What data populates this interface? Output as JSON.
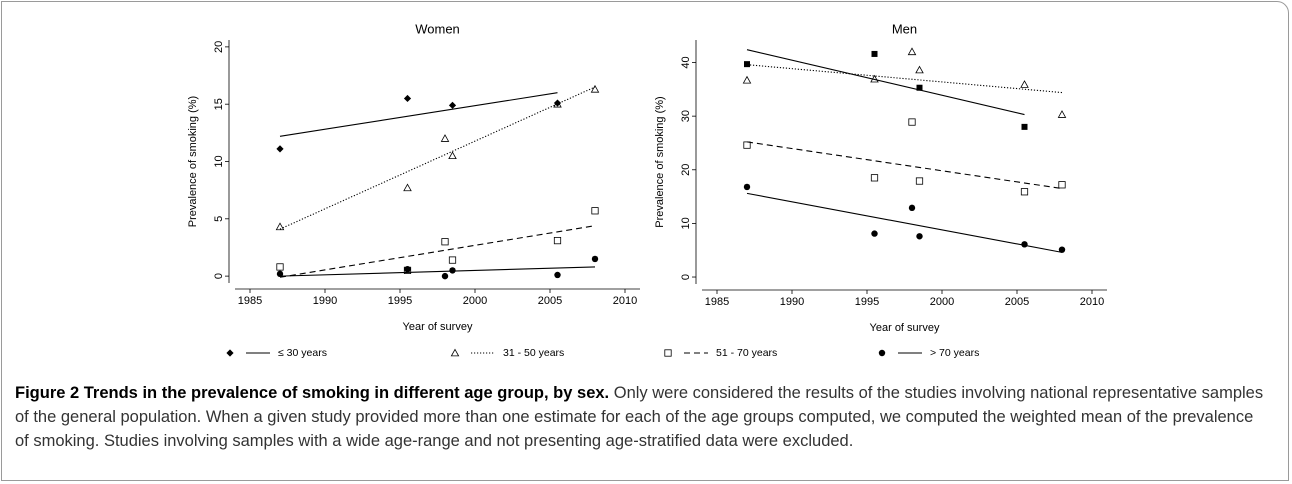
{
  "chart_data": [
    {
      "type": "scatter",
      "title": "Women",
      "x_label": "Year of survey",
      "y_label": "Prevalence of smoking (%)",
      "xlim": [
        1984,
        2011
      ],
      "xticks": [
        1985,
        1990,
        1995,
        2000,
        2005,
        2010
      ],
      "ylim": [
        -0.6,
        20.6
      ],
      "yticks": [
        0,
        5,
        10,
        15,
        20
      ],
      "series": [
        {
          "name": "≤ 30 years",
          "color": "#000000",
          "marker": "diamond",
          "dash": "solid",
          "x": [
            1987,
            1995.5,
            1998.5,
            2005.5
          ],
          "values": [
            11.1,
            15.5,
            14.9,
            15.1
          ],
          "trend": {
            "x": [
              1987,
              2005.5
            ],
            "values": [
              12.2,
              16.0
            ]
          }
        },
        {
          "name": "31 - 50 years",
          "color": "#000000",
          "marker": "triangle",
          "dash": "dotted",
          "x": [
            1987,
            1995.5,
            1998,
            1998.5,
            2005.5,
            2008
          ],
          "values": [
            4.3,
            7.7,
            12.0,
            10.5,
            15.0,
            16.3
          ],
          "trend": {
            "x": [
              1987,
              2008
            ],
            "values": [
              4.1,
              16.5
            ]
          }
        },
        {
          "name": "51 - 70 years",
          "color": "#000000",
          "marker": "square",
          "dash": "dashed",
          "x": [
            1987,
            1995.5,
            1998,
            1998.5,
            2005.5,
            2008
          ],
          "values": [
            0.8,
            0.5,
            3.0,
            1.4,
            3.1,
            5.7
          ],
          "trend": {
            "x": [
              1987,
              2008
            ],
            "values": [
              -0.1,
              4.4
            ]
          }
        },
        {
          "name": "> 70 years",
          "color": "#000000",
          "marker": "circle",
          "dash": "solid",
          "x": [
            1987,
            1995.5,
            1998,
            1998.5,
            2005.5,
            2008
          ],
          "values": [
            0.2,
            0.6,
            0.0,
            0.5,
            0.1,
            1.5
          ],
          "trend": {
            "x": [
              1987,
              2008
            ],
            "values": [
              0.0,
              0.8
            ]
          }
        }
      ]
    },
    {
      "type": "scatter",
      "title": "Men",
      "x_label": "Year of survey",
      "y_label": "Prevalence of smoking (%)",
      "xlim": [
        1984,
        2011
      ],
      "xticks": [
        1985,
        1990,
        1995,
        2000,
        2005,
        2010
      ],
      "ylim": [
        -1.3,
        44.2
      ],
      "yticks": [
        0,
        10,
        20,
        30,
        40
      ],
      "series": [
        {
          "color": "#000000",
          "marker": "filled-square",
          "dash": "solid",
          "x": [
            1987,
            1995.5,
            1998.5,
            2005.5
          ],
          "values": [
            39.7,
            41.6,
            35.3,
            28.0
          ],
          "trend": {
            "x": [
              1987,
              2005.5
            ],
            "values": [
              42.4,
              30.3
            ]
          }
        },
        {
          "color": "#000000",
          "marker": "triangle",
          "dash": "dotted",
          "x": [
            1987,
            1995.5,
            1998,
            1998.5,
            2005.5,
            2008
          ],
          "values": [
            36.7,
            36.9,
            42.0,
            38.6,
            35.9,
            30.3
          ],
          "trend": {
            "x": [
              1987,
              2008
            ],
            "values": [
              39.6,
              34.4
            ]
          }
        },
        {
          "color": "#000000",
          "marker": "square",
          "dash": "dashed",
          "x": [
            1987,
            1995.5,
            1998,
            1998.5,
            2005.5,
            2008
          ],
          "values": [
            24.6,
            18.5,
            28.9,
            17.9,
            15.9,
            17.2
          ],
          "trend": {
            "x": [
              1987,
              2008
            ],
            "values": [
              25.2,
              16.5
            ]
          }
        },
        {
          "color": "#000000",
          "marker": "circle",
          "dash": "solid",
          "x": [
            1987,
            1995.5,
            1998,
            1998.5,
            2005.5,
            2008
          ],
          "values": [
            16.8,
            8.1,
            12.9,
            7.6,
            6.1,
            5.1
          ],
          "trend": {
            "x": [
              1987,
              2008
            ],
            "values": [
              15.6,
              4.6
            ]
          }
        }
      ]
    }
  ],
  "caption": {
    "label": "Figure 2 Trends in the prevalence of smoking in different age group, by sex.",
    "text": "Only were considered the results of the studies involving national representative samples of the general population. When a given study provided more than one estimate for each of the age groups computed, we computed the weighted mean of the prevalence of smoking. Studies involving samples with a wide age-range and not presenting age-stratified data were excluded."
  }
}
